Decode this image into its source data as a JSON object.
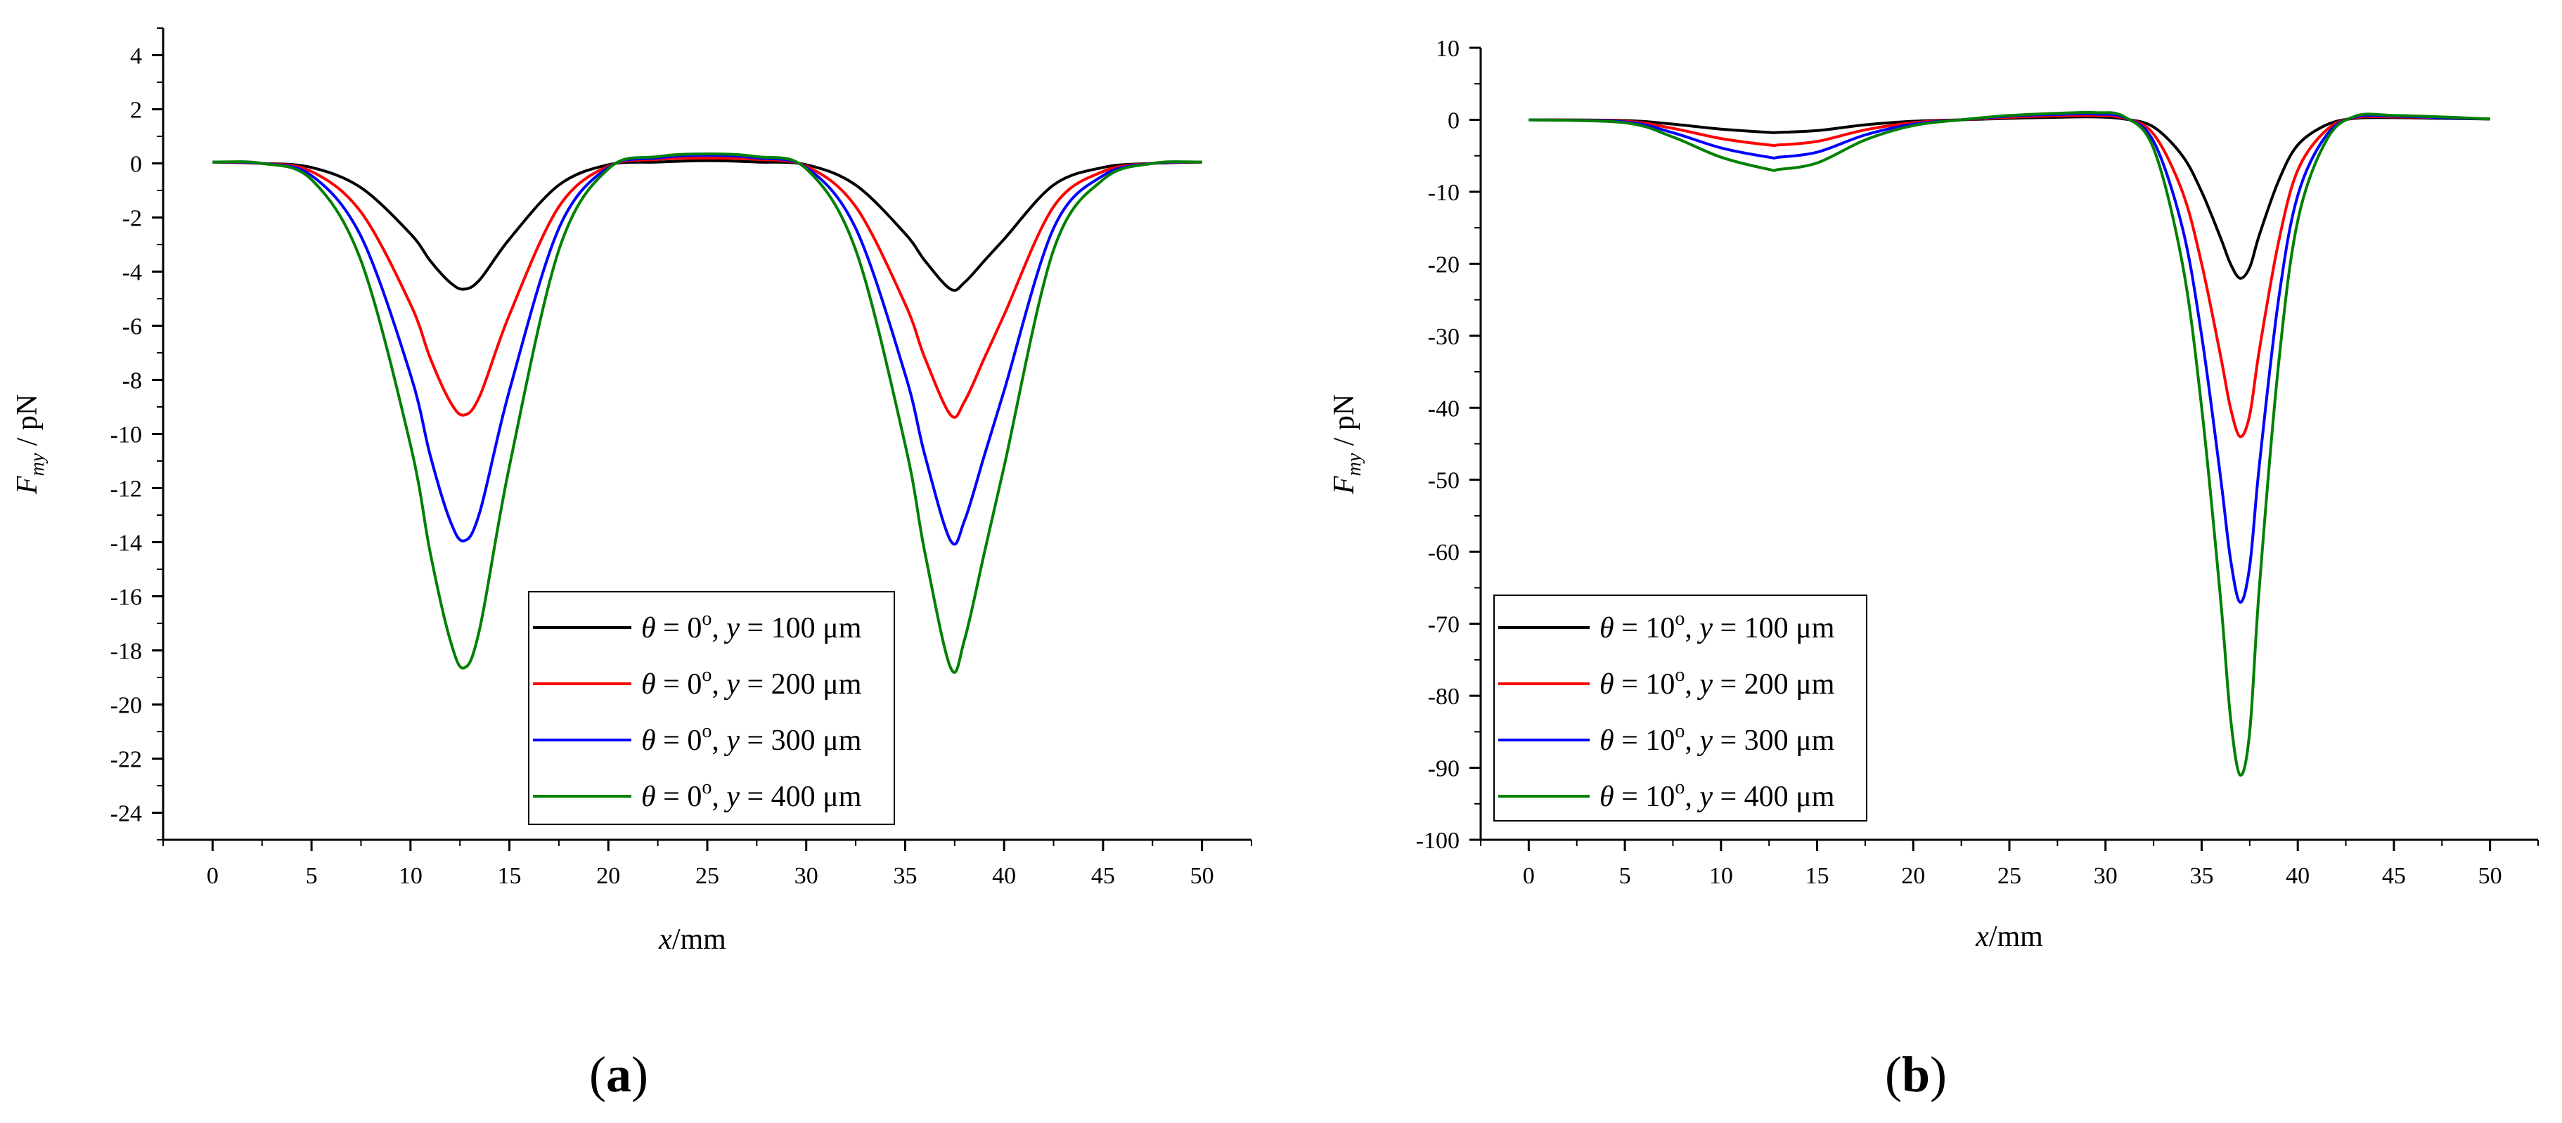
{
  "chart_data": [
    {
      "type": "line",
      "panel_label": "(a)",
      "panel_label_parts": {
        "open": "(",
        "letter": "a",
        "close": ")"
      },
      "xlabel": {
        "var": "x",
        "unit": "/mm"
      },
      "ylabel": {
        "var": "F",
        "sub": "my",
        "unit": " / pN"
      },
      "xlim": [
        -2.5,
        52.5
      ],
      "ylim": [
        -25,
        5
      ],
      "xticks": [
        0,
        5,
        10,
        15,
        20,
        25,
        30,
        35,
        40,
        45,
        50
      ],
      "yticks": [
        4,
        2,
        0,
        -2,
        -4,
        -6,
        -8,
        -10,
        -12,
        -14,
        -16,
        -18,
        -20,
        -22,
        -24
      ],
      "grid": false,
      "legend_position": "lower-center",
      "series": [
        {
          "name": "θ = 0°, y = 100 μm",
          "legend": {
            "theta": "θ",
            "eq1": " = 0",
            "sup": "o",
            "mid": ", ",
            "yvar": "y",
            "rest": " = 100 μm"
          },
          "color": "#000000",
          "x": [
            0,
            2.5,
            5,
            7.5,
            10,
            11,
            12,
            12.7,
            13.5,
            15,
            17.5,
            20,
            22.5,
            25,
            27.5,
            30,
            32.5,
            35,
            36,
            37.3,
            38,
            39,
            40,
            42.5,
            45,
            47.5,
            50
          ],
          "y": [
            0.05,
            0.0,
            -0.15,
            -0.9,
            -2.6,
            -3.6,
            -4.4,
            -4.65,
            -4.3,
            -2.8,
            -0.8,
            -0.05,
            0.05,
            0.1,
            0.05,
            -0.05,
            -0.8,
            -2.6,
            -3.6,
            -4.65,
            -4.4,
            -3.6,
            -2.8,
            -0.8,
            -0.15,
            0.0,
            0.05
          ]
        },
        {
          "name": "θ = 0°, y = 200 μm",
          "legend": {
            "theta": "θ",
            "eq1": " = 0",
            "sup": "o",
            "mid": ", ",
            "yvar": "y",
            "rest": " = 200 μm"
          },
          "color": "#ff0000",
          "x": [
            0,
            2.5,
            5,
            7.5,
            10,
            11,
            12,
            12.7,
            13.5,
            15,
            17.5,
            20,
            22.5,
            25,
            27.5,
            30,
            32.5,
            35,
            36,
            37.3,
            38,
            39,
            40,
            42.5,
            45,
            47.5,
            50
          ],
          "y": [
            0.05,
            0.0,
            -0.3,
            -1.8,
            -5.2,
            -7.2,
            -8.8,
            -9.3,
            -8.6,
            -5.6,
            -1.6,
            -0.1,
            0.15,
            0.2,
            0.15,
            -0.1,
            -1.6,
            -5.2,
            -7.2,
            -9.3,
            -8.8,
            -7.2,
            -5.6,
            -1.6,
            -0.3,
            0.0,
            0.05
          ]
        },
        {
          "name": "θ = 0°, y = 300 μm",
          "legend": {
            "theta": "θ",
            "eq1": " = 0",
            "sup": "o",
            "mid": ", ",
            "yvar": "y",
            "rest": " = 300 μm"
          },
          "color": "#0000ff",
          "x": [
            0,
            2.5,
            5,
            7.5,
            10,
            11,
            12,
            12.7,
            13.5,
            15,
            17.5,
            20,
            22.5,
            25,
            27.5,
            30,
            32.5,
            35,
            36,
            37.3,
            38,
            39,
            40,
            42.5,
            45,
            47.5,
            50
          ],
          "y": [
            0.05,
            0.0,
            -0.45,
            -2.7,
            -7.8,
            -10.8,
            -13.2,
            -13.95,
            -12.9,
            -8.4,
            -2.4,
            -0.15,
            0.2,
            0.3,
            0.2,
            -0.15,
            -2.4,
            -7.8,
            -10.8,
            -13.95,
            -13.2,
            -10.8,
            -8.4,
            -2.4,
            -0.45,
            0.0,
            0.05
          ]
        },
        {
          "name": "θ = 0°, y = 400 μm",
          "legend": {
            "theta": "θ",
            "eq1": " = 0",
            "sup": "o",
            "mid": ", ",
            "yvar": "y",
            "rest": " = 400 μm"
          },
          "color": "#008000",
          "x": [
            0,
            2.5,
            5,
            7.5,
            10,
            11,
            12,
            12.7,
            13.5,
            15,
            17.5,
            20,
            22.5,
            25,
            27.5,
            30,
            32.5,
            35,
            36,
            37.3,
            38,
            39,
            40,
            42.5,
            45,
            47.5,
            50
          ],
          "y": [
            0.05,
            0.0,
            -0.6,
            -3.6,
            -10.4,
            -14.4,
            -17.6,
            -18.65,
            -17.2,
            -11.2,
            -3.2,
            -0.2,
            0.25,
            0.35,
            0.25,
            -0.2,
            -3.2,
            -10.4,
            -14.4,
            -18.65,
            -17.6,
            -14.4,
            -11.2,
            -3.2,
            -0.6,
            0.0,
            0.05
          ]
        }
      ]
    },
    {
      "type": "line",
      "panel_label": "(b)",
      "panel_label_parts": {
        "open": "(",
        "letter": "b",
        "close": ")"
      },
      "xlabel": {
        "var": "x",
        "unit": "/mm"
      },
      "ylabel": {
        "var": "F",
        "sub": "my",
        "unit": " / pN"
      },
      "xlim": [
        -2.5,
        52.5
      ],
      "ylim": [
        -100,
        10
      ],
      "xticks": [
        0,
        5,
        10,
        15,
        20,
        25,
        30,
        35,
        40,
        45,
        50
      ],
      "yticks": [
        10,
        0,
        -10,
        -20,
        -30,
        -40,
        -50,
        -60,
        -70,
        -80,
        -90,
        -100
      ],
      "grid": false,
      "legend_position": "lower-left",
      "series": [
        {
          "name": "θ = 10°, y = 100 μm",
          "legend": {
            "theta": "θ",
            "eq1": " = 10",
            "sup": "o",
            "mid": ", ",
            "yvar": "y",
            "rest": " = 100 μm"
          },
          "color": "#000000",
          "x": [
            0,
            5,
            7.5,
            10,
            12.5,
            13,
            15,
            17.5,
            20,
            22.5,
            25,
            27.5,
            29.5,
            31,
            32.5,
            34,
            35,
            36,
            36.5,
            37,
            37.5,
            38,
            39,
            40,
            41.5,
            43,
            45,
            47.5,
            50
          ],
          "y": [
            0,
            -0.1,
            -0.6,
            -1.3,
            -1.75,
            -1.75,
            -1.5,
            -0.7,
            -0.2,
            0.0,
            0.2,
            0.35,
            0.4,
            0.1,
            -1.0,
            -5.0,
            -10.0,
            -16.5,
            -20.0,
            -22.0,
            -20.5,
            -16.0,
            -8.5,
            -3.5,
            -0.7,
            0.2,
            0.3,
            0.2,
            0.1
          ]
        },
        {
          "name": "θ = 10°, y = 200 μm",
          "legend": {
            "theta": "θ",
            "eq1": " = 10",
            "sup": "o",
            "mid": ", ",
            "yvar": "y",
            "rest": " = 200 μm"
          },
          "color": "#ff0000",
          "x": [
            0,
            5,
            7.5,
            10,
            12.5,
            13,
            15,
            17.5,
            20,
            22.5,
            25,
            27.5,
            29.5,
            31,
            32.5,
            34,
            35,
            36,
            36.5,
            37,
            37.5,
            38,
            39,
            40,
            41.5,
            43,
            45,
            47.5,
            50
          ],
          "y": [
            0,
            -0.2,
            -1.2,
            -2.6,
            -3.5,
            -3.5,
            -3.0,
            -1.4,
            -0.4,
            0.0,
            0.35,
            0.55,
            0.6,
            0.2,
            -2.0,
            -10.0,
            -20.0,
            -33.0,
            -40.0,
            -44.0,
            -41.0,
            -32.0,
            -17.0,
            -7.0,
            -1.4,
            0.3,
            0.4,
            0.3,
            0.1
          ]
        },
        {
          "name": "θ = 10°, y = 300 μm",
          "legend": {
            "theta": "θ",
            "eq1": " = 10",
            "sup": "o",
            "mid": ", ",
            "yvar": "y",
            "rest": " = 300 μm"
          },
          "color": "#0000ff",
          "x": [
            0,
            5,
            7.5,
            10,
            12.5,
            13,
            15,
            17.5,
            20,
            22.5,
            25,
            27.5,
            29.5,
            31,
            32.5,
            34,
            35,
            36,
            36.5,
            37,
            37.5,
            38,
            39,
            40,
            41.5,
            43,
            45,
            47.5,
            50
          ],
          "y": [
            0,
            -0.3,
            -1.8,
            -3.9,
            -5.2,
            -5.2,
            -4.5,
            -2.1,
            -0.6,
            0.0,
            0.5,
            0.75,
            0.8,
            0.3,
            -3.0,
            -15.0,
            -30.0,
            -50.0,
            -61.0,
            -67.0,
            -62.0,
            -48.0,
            -25.0,
            -10.5,
            -2.1,
            0.4,
            0.5,
            0.3,
            0.1
          ]
        },
        {
          "name": "θ = 10°, y = 400 μm",
          "legend": {
            "theta": "θ",
            "eq1": " = 10",
            "sup": "o",
            "mid": ", ",
            "yvar": "y",
            "rest": " = 400 μm"
          },
          "color": "#008000",
          "x": [
            0,
            5,
            7.5,
            10,
            12.5,
            13,
            15,
            17.5,
            20,
            22.5,
            25,
            27.5,
            29.5,
            31,
            32.5,
            34,
            35,
            36,
            36.5,
            37,
            37.5,
            38,
            39,
            40,
            41.5,
            43,
            45,
            47.5,
            50
          ],
          "y": [
            0,
            -0.4,
            -2.4,
            -5.2,
            -6.9,
            -6.9,
            -6.0,
            -2.8,
            -0.8,
            0.0,
            0.6,
            0.9,
            1.0,
            0.4,
            -4.0,
            -20.0,
            -40.0,
            -67.0,
            -83.0,
            -91.0,
            -85.0,
            -65.0,
            -34.0,
            -14.0,
            -2.8,
            0.5,
            0.6,
            0.4,
            0.1
          ]
        }
      ]
    }
  ]
}
